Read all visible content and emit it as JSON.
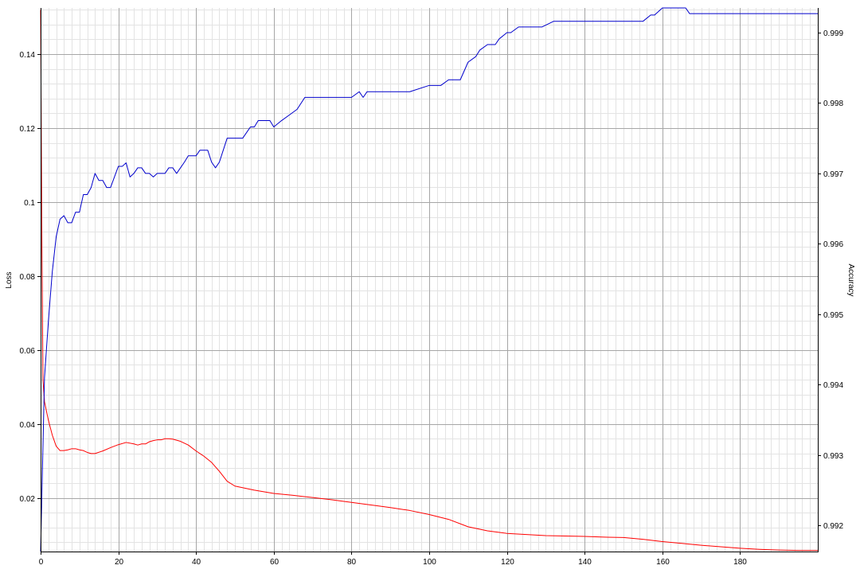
{
  "chart_data": {
    "type": "line",
    "xlim": [
      0,
      200
    ],
    "x_ticks": [
      "0",
      "20",
      "40",
      "60",
      "80",
      "100",
      "120",
      "140",
      "160",
      "180"
    ],
    "left_axis": {
      "label": "Loss",
      "ylim": [
        0.0055,
        0.1525
      ],
      "ticks": [
        "0.02",
        "0.04",
        "0.06",
        "0.08",
        "0.1",
        "0.12",
        "0.14"
      ]
    },
    "right_axis": {
      "label": "Accuracy",
      "ylim": [
        0.99163,
        0.99935
      ],
      "ticks": [
        "0.992",
        "0.993",
        "0.994",
        "0.995",
        "0.996",
        "0.997",
        "0.998",
        "0.999"
      ]
    },
    "grid": true,
    "series": [
      {
        "color": "#ff0000",
        "axis": "left",
        "x": [
          0,
          0.3,
          0.6,
          1,
          2,
          3,
          4,
          5,
          6,
          7,
          8,
          9,
          10,
          11,
          12,
          13,
          14,
          16,
          18,
          20,
          22,
          24,
          25,
          26,
          27,
          28,
          29,
          30,
          31,
          32,
          33,
          34,
          35,
          36,
          38,
          40,
          42,
          44,
          46,
          48,
          50,
          55,
          60,
          65,
          70,
          75,
          80,
          85,
          90,
          95,
          100,
          105,
          110,
          115,
          120,
          125,
          130,
          135,
          140,
          145,
          150,
          155,
          160,
          165,
          170,
          175,
          180,
          185,
          190,
          195,
          200
        ],
        "values": [
          0.152,
          0.095,
          0.052,
          0.046,
          0.041,
          0.037,
          0.034,
          0.0328,
          0.0328,
          0.033,
          0.0333,
          0.0333,
          0.033,
          0.0328,
          0.0323,
          0.032,
          0.032,
          0.0327,
          0.0336,
          0.0344,
          0.035,
          0.0346,
          0.0343,
          0.0346,
          0.0346,
          0.0352,
          0.0355,
          0.0357,
          0.0357,
          0.036,
          0.036,
          0.0359,
          0.0356,
          0.0353,
          0.0343,
          0.0327,
          0.0313,
          0.0296,
          0.0272,
          0.0245,
          0.0232,
          0.0221,
          0.0212,
          0.0207,
          0.0201,
          0.0195,
          0.0188,
          0.0181,
          0.0174,
          0.0166,
          0.0155,
          0.0142,
          0.0122,
          0.0111,
          0.0104,
          0.0101,
          0.0098,
          0.0097,
          0.0096,
          0.0094,
          0.0093,
          0.0088,
          0.0082,
          0.0077,
          0.0072,
          0.0068,
          0.0064,
          0.0061,
          0.0059,
          0.0058,
          0.0058
        ]
      },
      {
        "color": "#0000cc",
        "axis": "right",
        "x": [
          0,
          1,
          2,
          3,
          4,
          5,
          6,
          7,
          8,
          9,
          10,
          11,
          12,
          13,
          14,
          15,
          16,
          17,
          18,
          19,
          20,
          21,
          22,
          23,
          24,
          25,
          26,
          27,
          28,
          29,
          30,
          31,
          32,
          33,
          34,
          35,
          36,
          37,
          38,
          39,
          40,
          41,
          42,
          43,
          44,
          45,
          46,
          47,
          48,
          49,
          50,
          51,
          52,
          53,
          54,
          55,
          56,
          57,
          58,
          59,
          60,
          62,
          64,
          66,
          68,
          70,
          72,
          74,
          76,
          78,
          80,
          82,
          83,
          84,
          86,
          88,
          90,
          95,
          100,
          103,
          105,
          108,
          110,
          112,
          113,
          115,
          117,
          118,
          120,
          121,
          123,
          126,
          129,
          132,
          135,
          140,
          145,
          150,
          155,
          157,
          158,
          160,
          162,
          166,
          167,
          170,
          180,
          190,
          200
        ],
        "values": [
          0.99163,
          0.9941,
          0.9949,
          0.9956,
          0.9961,
          0.99635,
          0.9964,
          0.9963,
          0.9963,
          0.99645,
          0.99645,
          0.9967,
          0.9967,
          0.9968,
          0.997,
          0.9969,
          0.9969,
          0.9968,
          0.9968,
          0.99695,
          0.9971,
          0.9971,
          0.99715,
          0.99695,
          0.997,
          0.99708,
          0.99708,
          0.997,
          0.997,
          0.99695,
          0.997,
          0.997,
          0.997,
          0.99708,
          0.99708,
          0.997,
          0.99708,
          0.99716,
          0.99725,
          0.99725,
          0.99725,
          0.99733,
          0.99733,
          0.99733,
          0.99716,
          0.99708,
          0.99716,
          0.99733,
          0.9975,
          0.9975,
          0.9975,
          0.9975,
          0.9975,
          0.99758,
          0.99766,
          0.99766,
          0.99775,
          0.99775,
          0.99775,
          0.99775,
          0.99766,
          0.99775,
          0.99783,
          0.99791,
          0.99808,
          0.99808,
          0.99808,
          0.99808,
          0.99808,
          0.99808,
          0.99808,
          0.99816,
          0.99808,
          0.99816,
          0.99816,
          0.99816,
          0.99816,
          0.99816,
          0.99825,
          0.99825,
          0.99833,
          0.99833,
          0.99858,
          0.99866,
          0.99875,
          0.99883,
          0.99883,
          0.99891,
          0.999,
          0.999,
          0.99908,
          0.99908,
          0.99908,
          0.99916,
          0.99916,
          0.99916,
          0.99916,
          0.99916,
          0.99916,
          0.99925,
          0.99925,
          0.99935,
          0.99935,
          0.99935,
          0.99927,
          0.99927,
          0.99927,
          0.99927,
          0.99927
        ]
      }
    ]
  }
}
